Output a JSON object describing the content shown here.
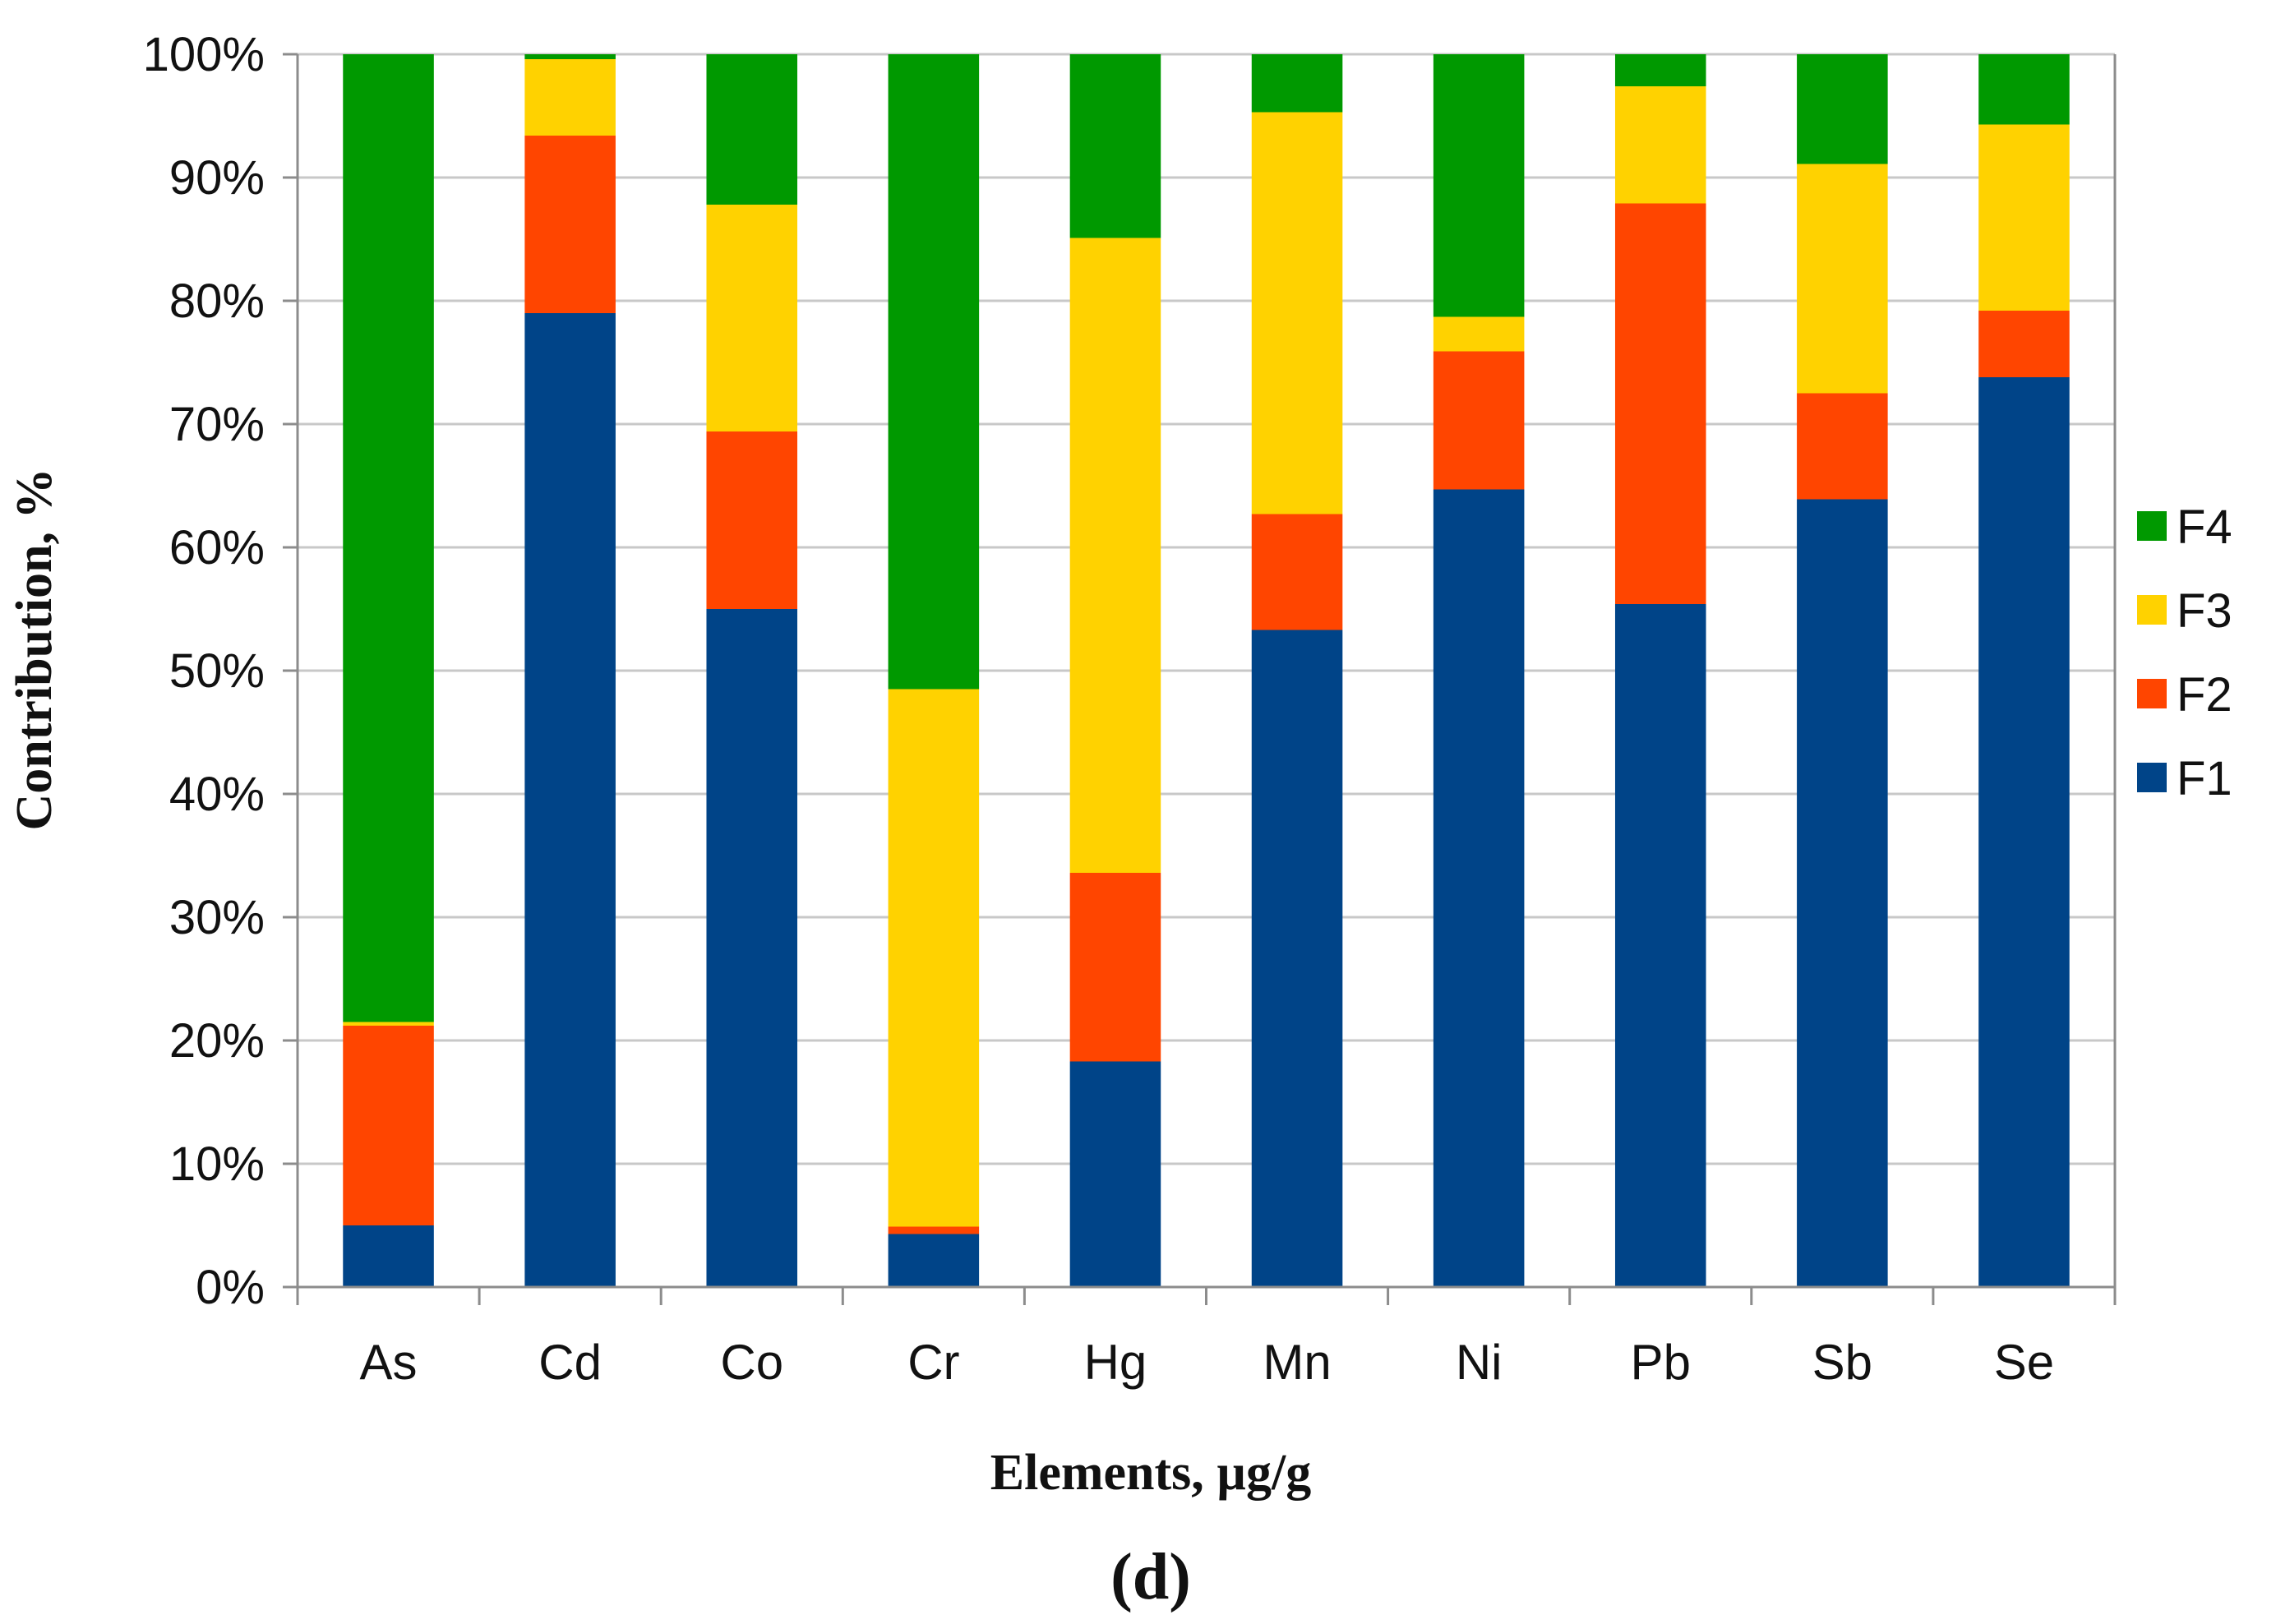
{
  "chart_data": {
    "type": "bar",
    "stacked": true,
    "normalized": true,
    "categories": [
      "As",
      "Cd",
      "Co",
      "Cr",
      "Hg",
      "Mn",
      "Ni",
      "Pb",
      "Sb",
      "Se"
    ],
    "series": [
      {
        "name": "F1",
        "color": "#004488",
        "values": [
          5.0,
          79.0,
          55.0,
          4.3,
          18.3,
          53.3,
          64.7,
          55.4,
          63.9,
          73.8
        ]
      },
      {
        "name": "F2",
        "color": "#ff4500",
        "values": [
          16.2,
          14.4,
          14.4,
          0.6,
          15.3,
          9.4,
          11.2,
          32.5,
          8.6,
          5.4
        ]
      },
      {
        "name": "F3",
        "color": "#ffd200",
        "values": [
          0.3,
          6.2,
          18.4,
          43.6,
          51.5,
          32.6,
          2.8,
          9.5,
          18.6,
          15.1
        ]
      },
      {
        "name": "F4",
        "color": "#009900",
        "values": [
          78.5,
          0.4,
          12.2,
          51.5,
          14.9,
          4.7,
          21.3,
          2.6,
          8.9,
          5.7
        ]
      }
    ],
    "yticks": [
      "0%",
      "10%",
      "20%",
      "30%",
      "40%",
      "50%",
      "60%",
      "70%",
      "80%",
      "90%",
      "100%"
    ],
    "ylim": [
      0,
      100
    ],
    "xlabel": "Elements, µg/g",
    "ylabel": "Contribution, %",
    "panel_label": "(d)",
    "legend_position": "right",
    "grid": true,
    "gridline_color": "#c8c8c8",
    "axis_color": "#8c8c8c"
  }
}
